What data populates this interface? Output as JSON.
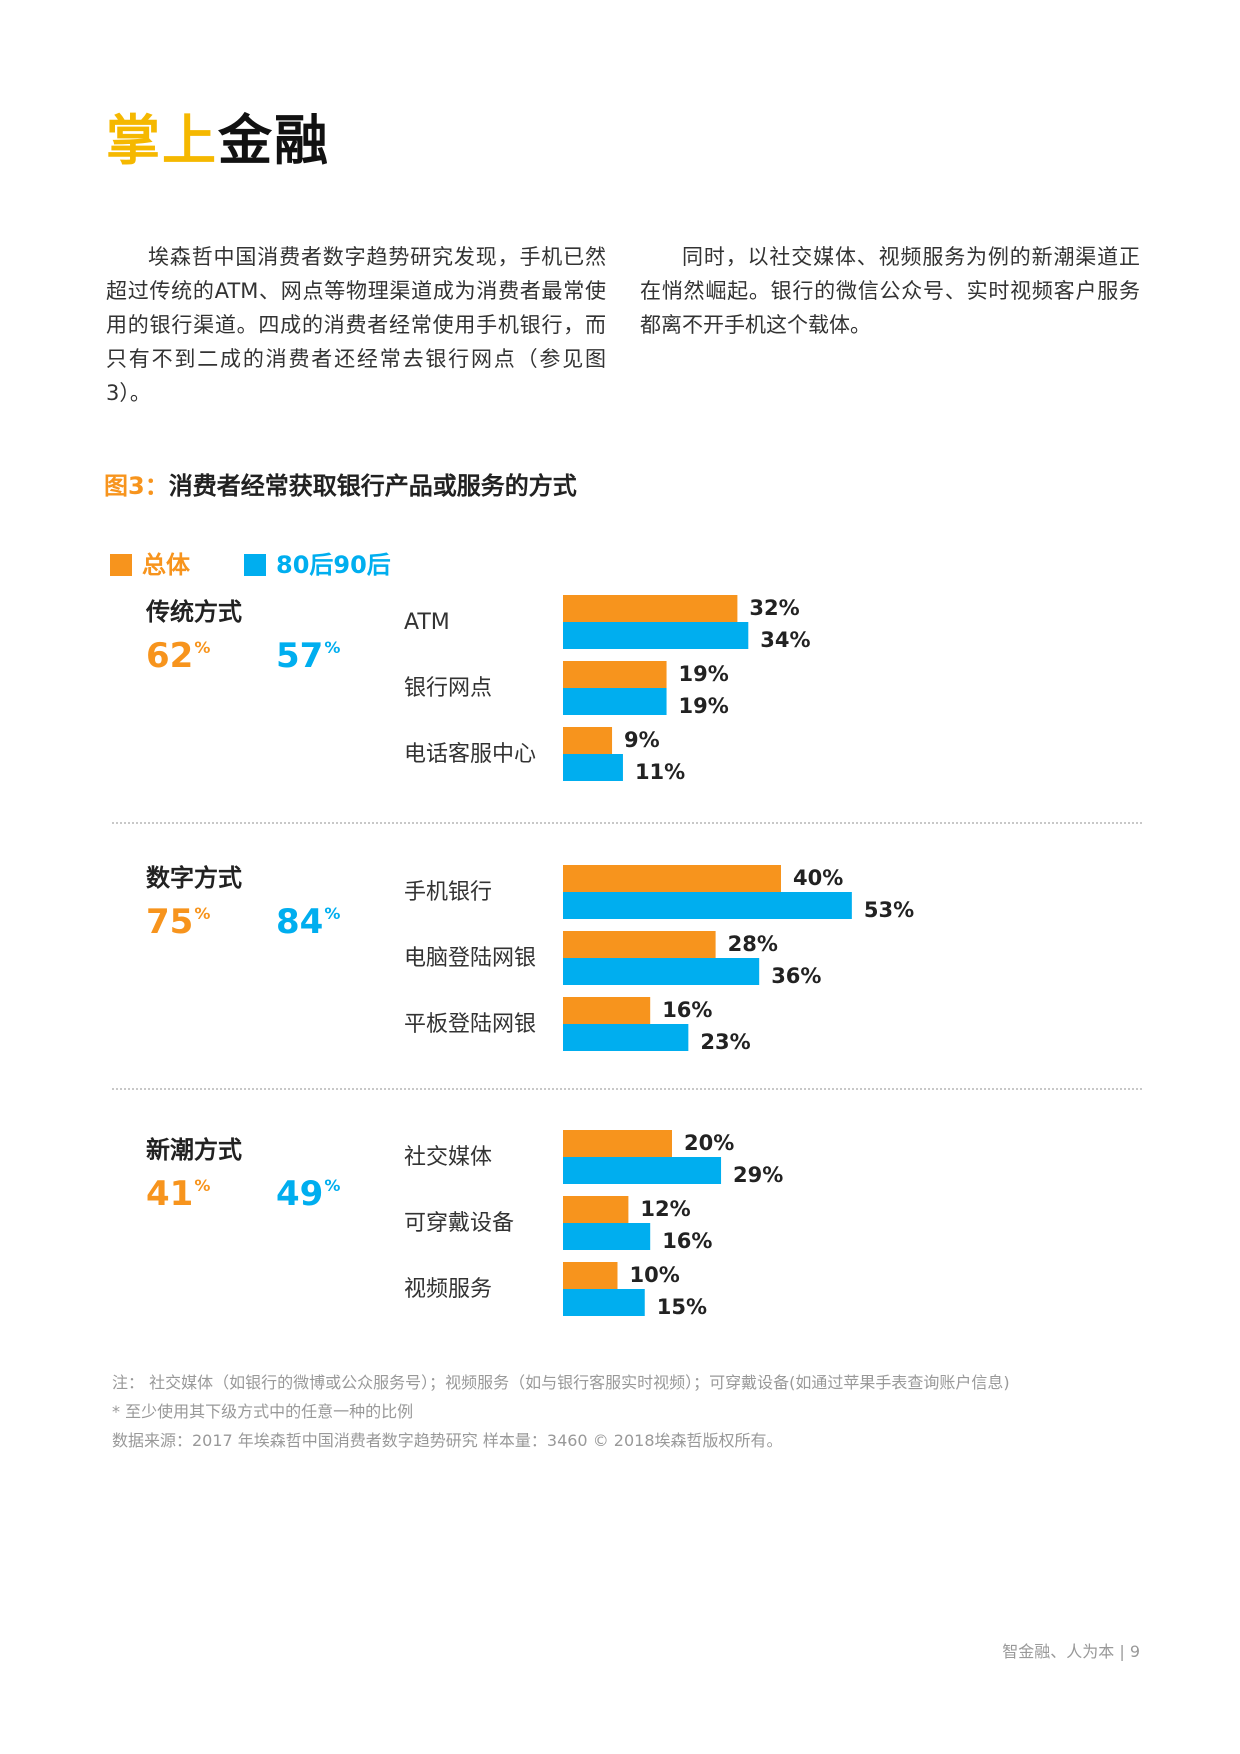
{
  "page_title": {
    "part1": "掌上",
    "part2": "金融"
  },
  "intro": {
    "left": "埃森哲中国消费者数字趋势研究发现，手机已然超过传统的ATM、网点等物理渠道成为消费者最常使用的银行渠道。四成的消费者经常使用手机银行，而只有不到二成的消费者还经常去银行网点（参见图3）。",
    "right": "同时，以社交媒体、视频服务为例的新潮渠道正在悄然崛起。银行的微信公众号、实时视频客户服务都离不开手机这个载体。"
  },
  "figure": {
    "number": "图3：",
    "title": "消费者经常获取银行产品或服务的方式"
  },
  "legend": {
    "total": "总体",
    "young": "80后90后"
  },
  "colors": {
    "total": "#F7941D",
    "young": "#00AEEF"
  },
  "chart_data": {
    "type": "bar",
    "orientation": "horizontal",
    "series_names": [
      "总体",
      "80后90后"
    ],
    "sections": [
      {
        "name": "传统方式",
        "total_pct": "62",
        "young_pct": "57",
        "items": [
          {
            "label": "ATM",
            "total": 32,
            "young": 34
          },
          {
            "label": "银行网点",
            "total": 19,
            "young": 19
          },
          {
            "label": "电话客服中心",
            "total": 9,
            "young": 11
          }
        ]
      },
      {
        "name": "数字方式",
        "total_pct": "75",
        "young_pct": "84",
        "items": [
          {
            "label": "手机银行",
            "total": 40,
            "young": 53
          },
          {
            "label": "电脑登陆网银",
            "total": 28,
            "young": 36
          },
          {
            "label": "平板登陆网银",
            "total": 16,
            "young": 23
          }
        ]
      },
      {
        "name": "新潮方式",
        "total_pct": "41",
        "young_pct": "49",
        "items": [
          {
            "label": "社交媒体",
            "total": 20,
            "young": 29
          },
          {
            "label": "可穿戴设备",
            "total": 12,
            "young": 16
          },
          {
            "label": "视频服务",
            "total": 10,
            "young": 15
          }
        ]
      }
    ]
  },
  "notes": {
    "line1": "注：  社交媒体（如银行的微博或公众服务号）；视频服务（如与银行客服实时视频）；可穿戴设备(如通过苹果手表查询账户信息)",
    "line2": "* 至少使用其下级方式中的任意一种的比例",
    "line3": "数据来源：2017 年埃森哲中国消费者数字趋势研究 样本量：3460 © 2018埃森哲版权所有。"
  },
  "footer": {
    "text": "智金融、人为本 | 9"
  }
}
